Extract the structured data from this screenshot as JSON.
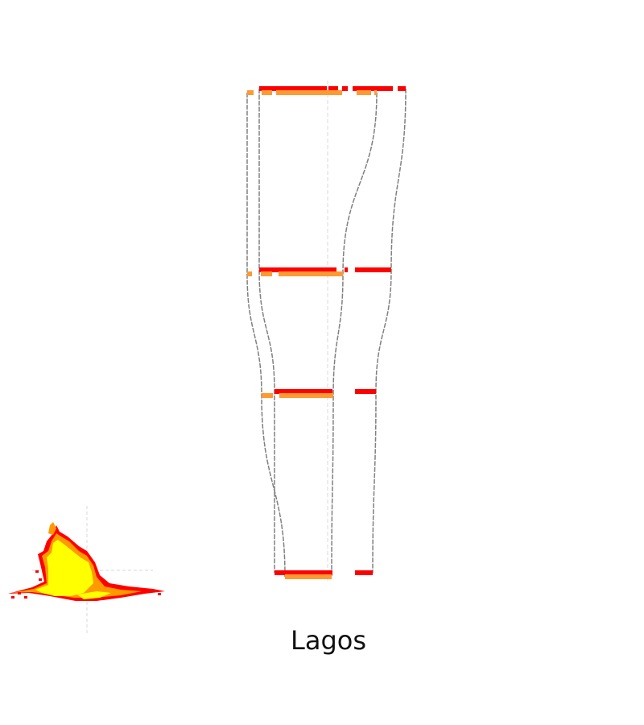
{
  "city": {
    "name": "Lagos"
  },
  "colors": {
    "line": "#808080",
    "axis": "#d9d9d9",
    "series_a": "#ff0000",
    "series_b": "#ff9933",
    "map_low": "#ff0000",
    "map_mid": "#ff9900",
    "map_high": "#ffff00"
  },
  "chart_data": {
    "type": "line",
    "title": "",
    "subtitle": "",
    "xlabel": "",
    "ylabel": "",
    "levels": [
      0,
      1,
      2,
      3
    ],
    "series": [
      {
        "color_key": "series_a",
        "left_edge": [
          322,
          322,
          341,
          341
        ],
        "right_edge": [
          504,
          486,
          467,
          463
        ],
        "segments": [
          [
            [
              322,
              406
            ],
            [
              408,
              420
            ],
            [
              425,
              432
            ],
            [
              438,
              488
            ],
            [
              494,
              504
            ]
          ],
          [
            [
              322,
              418
            ],
            [
              428,
              432
            ],
            [
              441,
              486
            ]
          ],
          [
            [
              341,
              413
            ],
            [
              441,
              467
            ]
          ],
          [
            [
              341,
              413
            ],
            [
              441,
              463
            ]
          ]
        ]
      },
      {
        "color_key": "series_b",
        "left_edge": [
          307,
          307,
          325,
          354
        ],
        "right_edge": [
          468,
          426,
          414,
          412
        ],
        "segments": [
          [
            [
              307,
              315
            ],
            [
              325,
              338
            ],
            [
              343,
              425
            ],
            [
              443,
              461
            ],
            [
              465,
              468
            ]
          ],
          [
            [
              307,
              313
            ],
            [
              324,
              338
            ],
            [
              346,
              426
            ]
          ],
          [
            [
              325,
              339
            ],
            [
              347,
              414
            ]
          ],
          [
            [
              354,
              412
            ]
          ]
        ]
      }
    ]
  }
}
